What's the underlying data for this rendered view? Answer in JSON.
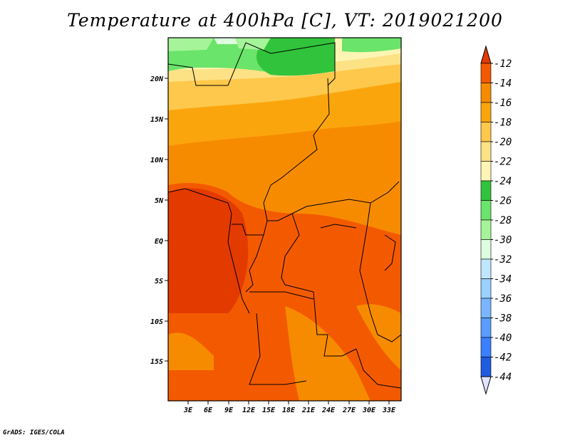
{
  "title": "Temperature at 400hPa [C], VT: 2019021200",
  "credit": "GrADS: IGES/COLA",
  "latitude_labels": [
    "20N",
    "15N",
    "10N",
    "5N",
    "EQ",
    "5S",
    "10S",
    "15S"
  ],
  "longitude_labels": [
    "3E",
    "6E",
    "9E",
    "12E",
    "15E",
    "18E",
    "21E",
    "24E",
    "27E",
    "30E",
    "33E"
  ],
  "colorbar": {
    "labels": [
      "-12",
      "-14",
      "-16",
      "-18",
      "-20",
      "-22",
      "-24",
      "-26",
      "-28",
      "-30",
      "-32",
      "-34",
      "-36",
      "-38",
      "-40",
      "-42",
      "-44"
    ],
    "colors": [
      "#e33a00",
      "#f35a00",
      "#f78b00",
      "#fba50d",
      "#fdc84b",
      "#fde185",
      "#fef5b4",
      "#31c33b",
      "#6ae46a",
      "#a6f49a",
      "#dcfde0",
      "#bfe6ff",
      "#9bd0ff",
      "#7ab6ff",
      "#5a9cff",
      "#3a7fff",
      "#1e5ce0",
      "#1240b8",
      "#070a6e",
      "#dfe3ff"
    ]
  }
}
